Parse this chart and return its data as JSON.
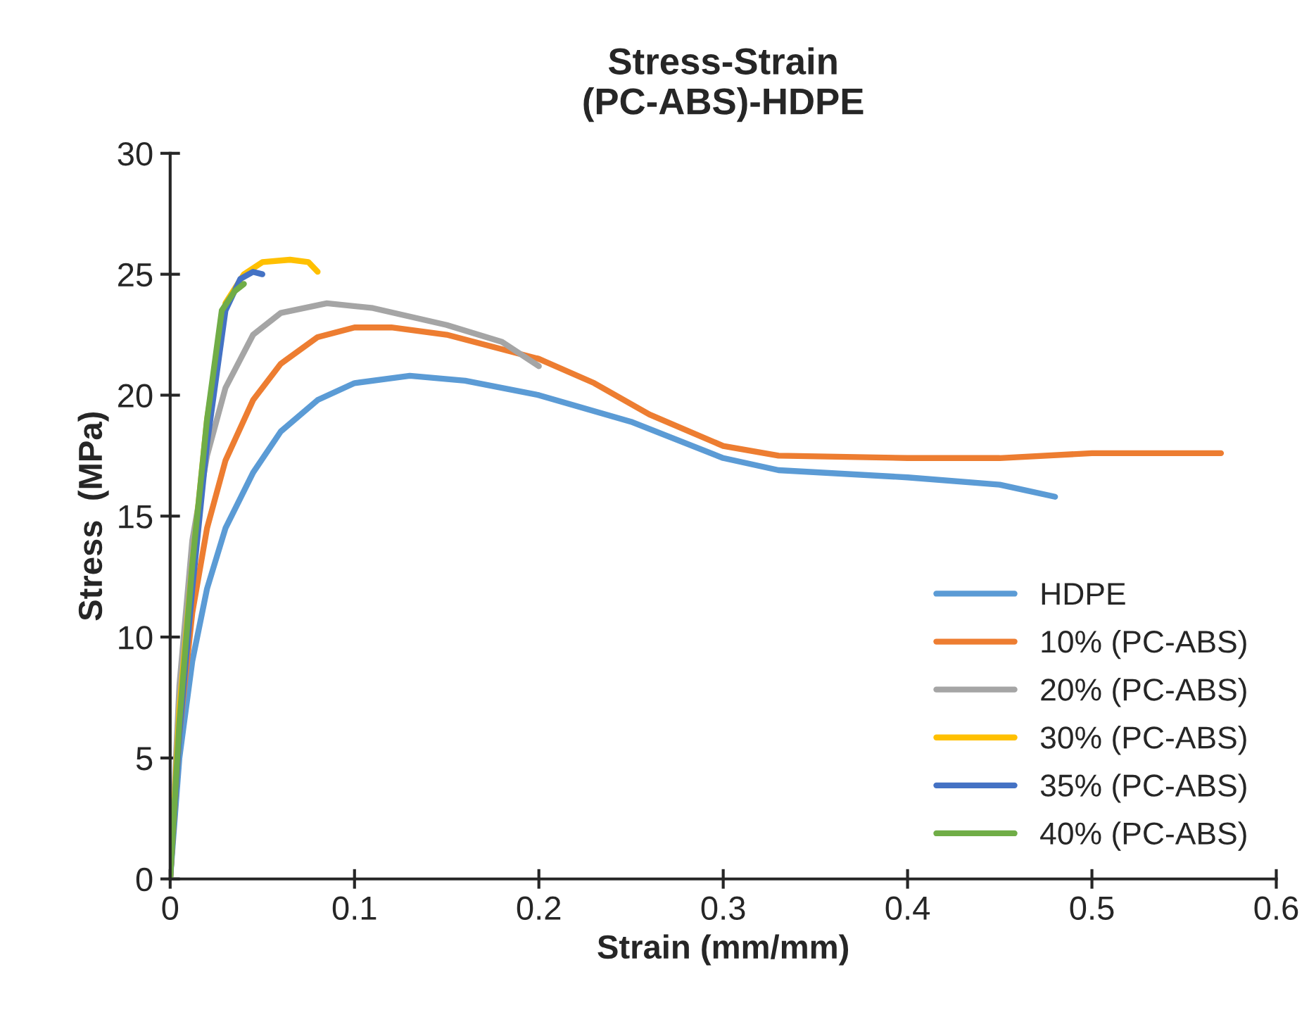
{
  "chart_data": {
    "type": "line",
    "title": "Stress-Strain\n(PC-ABS)-HDPE",
    "xlabel": "Strain (mm/mm)",
    "ylabel": "Stress  (MPa)",
    "xlim": [
      0,
      0.6
    ],
    "xticks": [
      0,
      0.1,
      0.2,
      0.3,
      0.4,
      0.5,
      0.6
    ],
    "ylim": [
      0,
      30
    ],
    "yticks": [
      0,
      5,
      10,
      15,
      20,
      25,
      30
    ],
    "grid": false,
    "legend": "bottom right",
    "marker": "none",
    "line_style": "solid",
    "series": [
      {
        "name": "HDPE",
        "color": "#5b9bd5",
        "x": [
          0,
          0.005,
          0.012,
          0.02,
          0.03,
          0.045,
          0.06,
          0.08,
          0.1,
          0.13,
          0.16,
          0.2,
          0.25,
          0.3,
          0.33,
          0.4,
          0.45,
          0.48
        ],
        "values": [
          0,
          5,
          9,
          12,
          14.5,
          16.8,
          18.5,
          19.8,
          20.5,
          20.8,
          20.6,
          20.0,
          18.9,
          17.4,
          16.9,
          16.6,
          16.3,
          15.8
        ]
      },
      {
        "name": "10% (PC-ABS)",
        "color": "#ed7d31",
        "x": [
          0,
          0.005,
          0.012,
          0.02,
          0.03,
          0.045,
          0.06,
          0.08,
          0.1,
          0.12,
          0.15,
          0.2,
          0.23,
          0.26,
          0.3,
          0.33,
          0.4,
          0.45,
          0.5,
          0.57
        ],
        "values": [
          0,
          6,
          11,
          14.5,
          17.3,
          19.8,
          21.3,
          22.4,
          22.8,
          22.8,
          22.5,
          21.5,
          20.5,
          19.2,
          17.9,
          17.5,
          17.4,
          17.4,
          17.6,
          17.6
        ]
      },
      {
        "name": "20% (PC-ABS)",
        "color": "#a5a5a5",
        "x": [
          0,
          0.005,
          0.012,
          0.02,
          0.03,
          0.045,
          0.06,
          0.085,
          0.11,
          0.15,
          0.18,
          0.2
        ],
        "values": [
          0,
          8,
          14,
          17.5,
          20.3,
          22.5,
          23.4,
          23.8,
          23.6,
          22.9,
          22.2,
          21.2
        ]
      },
      {
        "name": "30% (PC-ABS)",
        "color": "#ffc000",
        "x": [
          0,
          0.005,
          0.012,
          0.02,
          0.03,
          0.04,
          0.05,
          0.065,
          0.075,
          0.08
        ],
        "values": [
          0,
          7,
          13,
          19,
          23.8,
          25,
          25.5,
          25.6,
          25.5,
          25.1
        ]
      },
      {
        "name": "35% (PC-ABS)",
        "color": "#4472c4",
        "x": [
          0,
          0.005,
          0.012,
          0.02,
          0.03,
          0.038,
          0.045,
          0.05
        ],
        "values": [
          0,
          6,
          12,
          18,
          23.5,
          24.8,
          25.1,
          25.0
        ]
      },
      {
        "name": "40% (PC-ABS)",
        "color": "#70ad47",
        "x": [
          0,
          0.005,
          0.012,
          0.02,
          0.028,
          0.035,
          0.04
        ],
        "values": [
          0,
          6.5,
          13,
          19,
          23.5,
          24.3,
          24.6
        ]
      }
    ]
  }
}
